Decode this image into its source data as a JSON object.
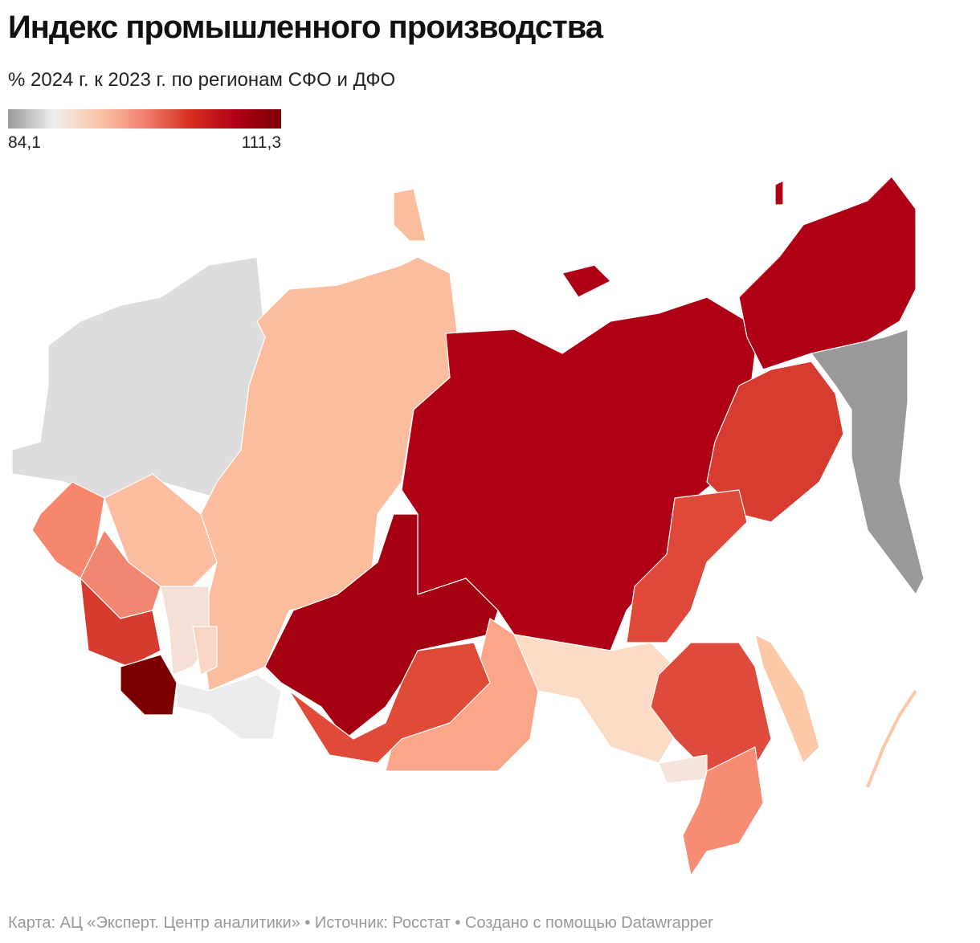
{
  "header": {
    "title": "Индекс промышленного производства",
    "subtitle": "% 2024 г. к 2023 г. по регионам СФО и ДФО"
  },
  "legend": {
    "min": {
      "value": 84.1,
      "label": "84,1"
    },
    "max": {
      "value": 111.3,
      "label": "111,3"
    },
    "colors": [
      "#999999",
      "#eeeeee",
      "#fcc6a8",
      "#f08070",
      "#d7301f",
      "#b00016",
      "#7a0000"
    ]
  },
  "footer": "Карта: АЦ «Эксперт. Центр аналитики» • Источник: Росстат • Создано с помощью Datawrapper"
}
